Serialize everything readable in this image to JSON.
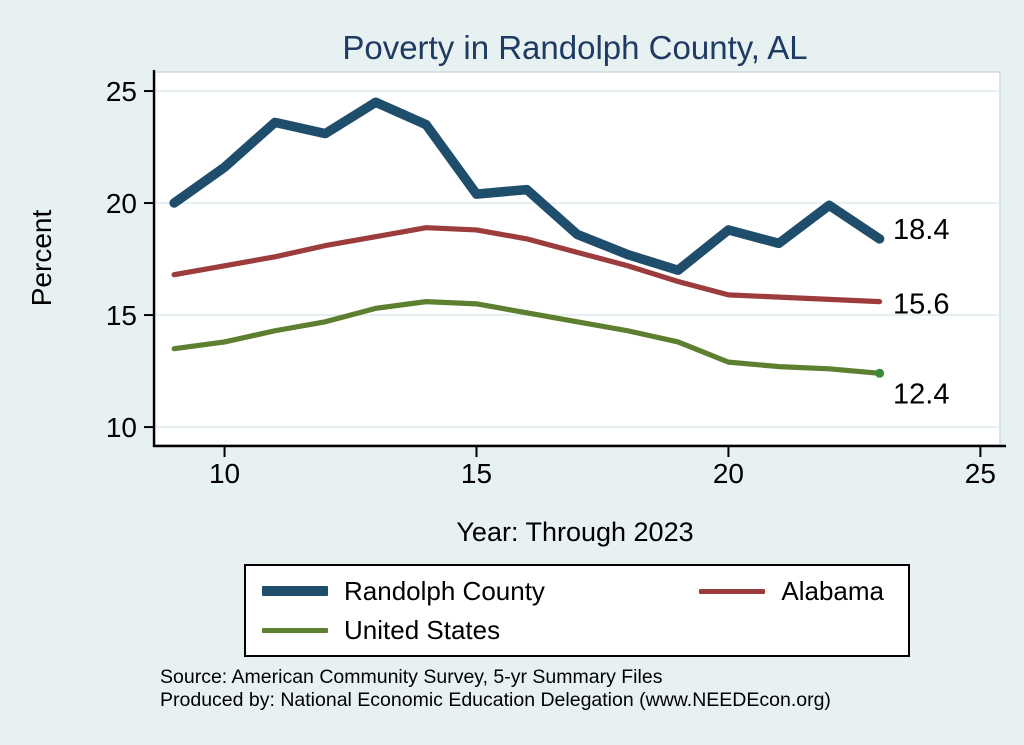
{
  "title": "Poverty in Randolph County, AL",
  "colors": {
    "background": "#e8f1f2",
    "title": "#1f3b63",
    "plot_background": "#ffffff",
    "plot_frame": "#ccdbde",
    "grid": "#dfecee",
    "axis": "#000000"
  },
  "chart_data": {
    "type": "line",
    "title": "Poverty in Randolph County, AL",
    "xlabel": "Year: Through 2023",
    "ylabel": "Percent",
    "x": [
      9,
      10,
      11,
      12,
      13,
      14,
      15,
      16,
      17,
      18,
      19,
      20,
      21,
      22,
      23
    ],
    "x_ticks": [
      10,
      15,
      20,
      25
    ],
    "y_ticks": [
      10,
      15,
      20,
      25
    ],
    "xlim": [
      8.62,
      25.29
    ],
    "ylim": [
      9.2,
      25.85
    ],
    "grid": "horizontal",
    "legend_position": "bottom",
    "series": [
      {
        "name": "Randolph County",
        "color": "#1f4e6d",
        "width": 9.5,
        "end_label": "18.4",
        "label_dy": -10,
        "values": [
          20.0,
          21.6,
          23.6,
          23.1,
          24.5,
          23.5,
          20.4,
          20.6,
          18.6,
          17.7,
          17.0,
          18.8,
          18.2,
          19.9,
          18.4
        ]
      },
      {
        "name": "Alabama",
        "color": "#9c3c3c",
        "width": 5.2,
        "end_label": "15.6",
        "label_dy": 2,
        "values": [
          16.8,
          17.2,
          17.6,
          18.1,
          18.5,
          18.9,
          18.8,
          18.4,
          17.8,
          17.2,
          16.5,
          15.9,
          15.8,
          15.7,
          15.6
        ]
      },
      {
        "name": "United States",
        "color": "#5c7f30",
        "width": 5.2,
        "end_label": "12.4",
        "label_dy": 20,
        "end_marker": true,
        "end_marker_color": "#3a8a3a",
        "values": [
          13.5,
          13.8,
          14.3,
          14.7,
          15.3,
          15.6,
          15.5,
          15.1,
          14.7,
          14.3,
          13.8,
          12.9,
          12.7,
          12.6,
          12.4
        ]
      }
    ]
  },
  "footer": {
    "line1": "Source: American Community Survey, 5-yr Summary Files",
    "line2": "Produced by: National Economic Education Delegation (www.NEEDEcon.org)"
  }
}
